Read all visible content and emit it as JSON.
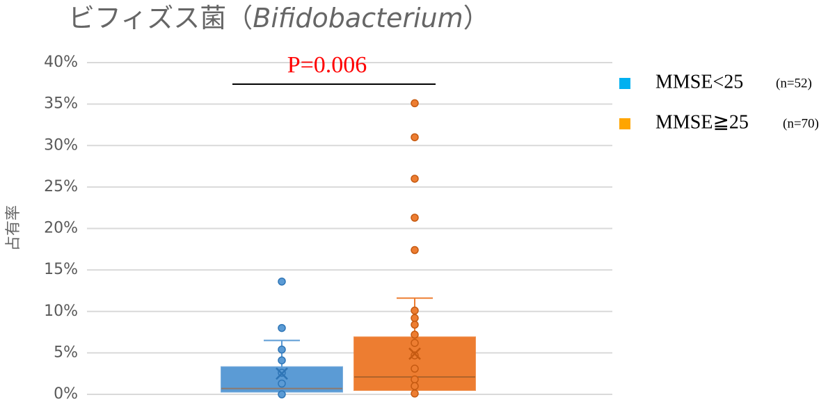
{
  "chart_data": {
    "type": "box",
    "title": [
      "ビフィズス菌（",
      "Bifidobacterium",
      "）"
    ],
    "y_label": "占有率",
    "annotation": "P=0.006",
    "ylim": [
      0,
      40
    ],
    "yticks": [
      {
        "value": 0,
        "label": "0%"
      },
      {
        "value": 5,
        "label": "5%"
      },
      {
        "value": 10,
        "label": "10%"
      },
      {
        "value": 15,
        "label": "15%"
      },
      {
        "value": 20,
        "label": "20%"
      },
      {
        "value": 25,
        "label": "25%"
      },
      {
        "value": 30,
        "label": "30%"
      },
      {
        "value": 35,
        "label": "35%"
      },
      {
        "value": 40,
        "label": "40%"
      }
    ],
    "grid": true,
    "legend": "right",
    "series": [
      {
        "name": "MMSE<25",
        "note": "(n=52)",
        "color": "#5b9bd5",
        "legend_color": "#00b0f0",
        "min": 0,
        "q1": 0.3,
        "median": 0.7,
        "q3": 3.3,
        "max": 6.5,
        "mean": 2.5,
        "points": [
          13.6,
          8.0,
          5.4,
          4.1,
          2.6,
          1.3,
          0
        ]
      },
      {
        "name": "MMSE≧25",
        "note": "(n=70)",
        "color": "#ed7d31",
        "legend_color": "#ffa500",
        "min": 0,
        "q1": 0.5,
        "median": 2.1,
        "q3": 6.9,
        "max": 11.6,
        "mean": 4.9,
        "points": [
          35.1,
          31.0,
          26.0,
          21.3,
          17.4,
          10.1,
          9.2,
          8.4,
          7.2,
          6.2,
          4.7,
          3.1,
          1.8,
          1.0,
          0.1
        ]
      }
    ]
  }
}
